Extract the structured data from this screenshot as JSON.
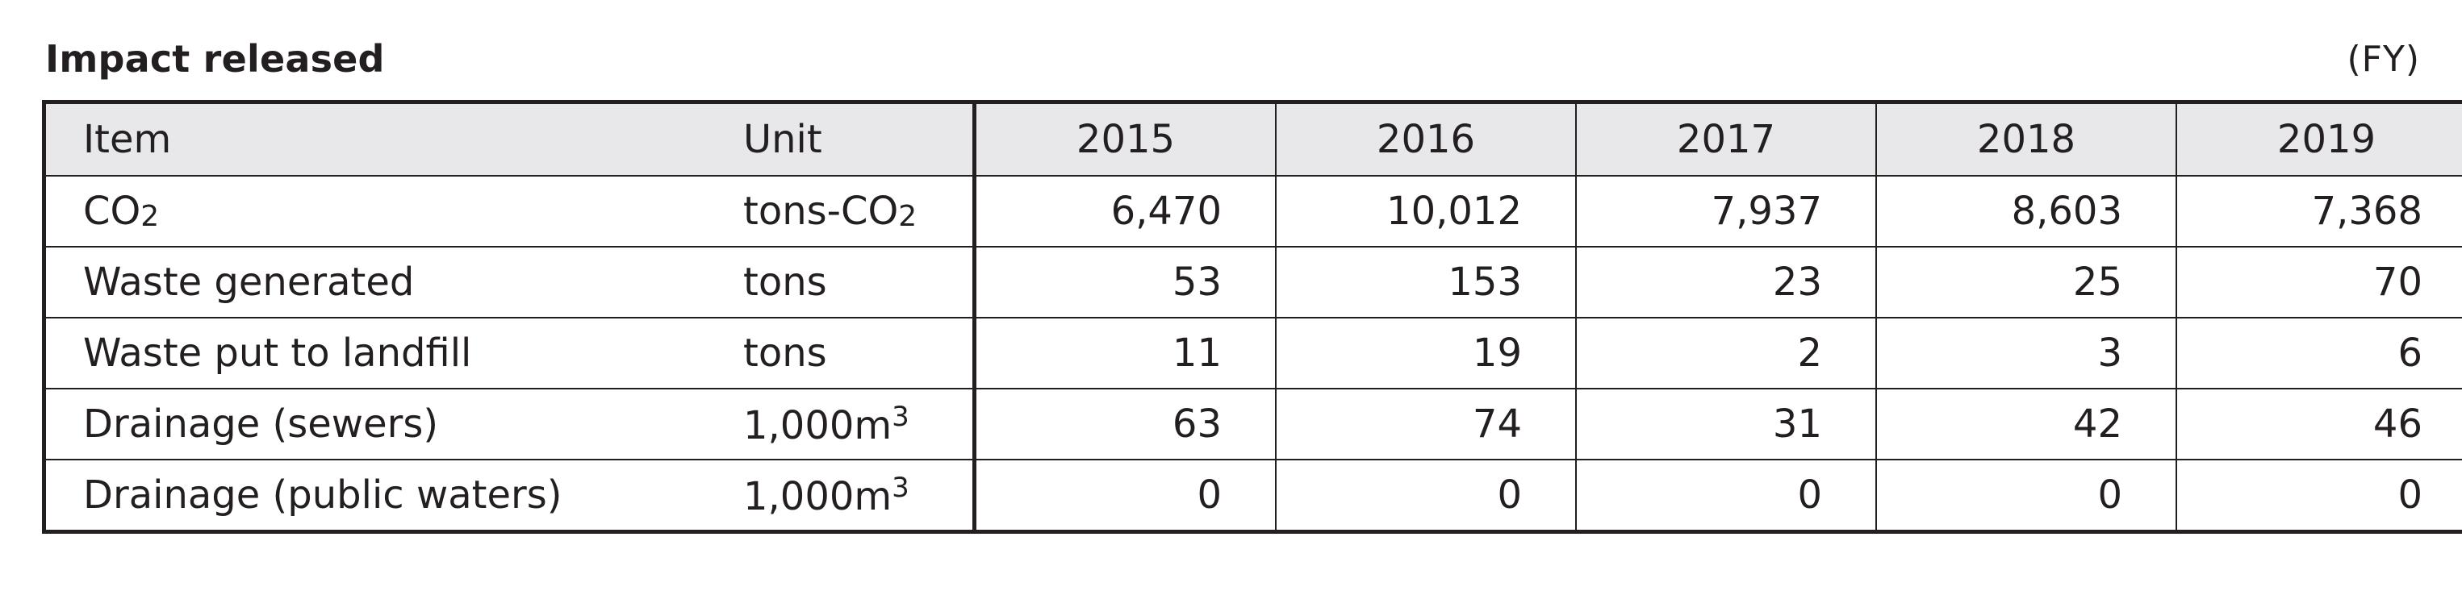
{
  "title": "Impact released",
  "fiscal_note": "(FY)",
  "table": {
    "headers": {
      "item": "Item",
      "unit": "Unit",
      "years": [
        "2015",
        "2016",
        "2017",
        "2018",
        "2019"
      ]
    },
    "rows": [
      {
        "item_main": "CO",
        "item_suffix": "2",
        "unit_main": "tons-CO",
        "unit_suffix": "2",
        "unit_suffix_type": "sub",
        "values": [
          "6,470",
          "10,012",
          "7,937",
          "8,603",
          "7,368"
        ]
      },
      {
        "item_main": "Waste generated",
        "item_suffix": "",
        "unit_main": "tons",
        "unit_suffix": "",
        "unit_suffix_type": "",
        "values": [
          "53",
          "153",
          "23",
          "25",
          "70"
        ]
      },
      {
        "item_main": "Waste put to landfill",
        "item_suffix": "",
        "unit_main": "tons",
        "unit_suffix": "",
        "unit_suffix_type": "",
        "values": [
          "11",
          "19",
          "2",
          "3",
          "6"
        ]
      },
      {
        "item_main": "Drainage (sewers)",
        "item_suffix": "",
        "unit_main": "1,000m",
        "unit_suffix": "3",
        "unit_suffix_type": "sup",
        "values": [
          "63",
          "74",
          "31",
          "42",
          "46"
        ]
      },
      {
        "item_main": "Drainage (public waters)",
        "item_suffix": "",
        "unit_main": "1,000m",
        "unit_suffix": "3",
        "unit_suffix_type": "sup",
        "values": [
          "0",
          "0",
          "0",
          "0",
          "0"
        ]
      }
    ]
  }
}
